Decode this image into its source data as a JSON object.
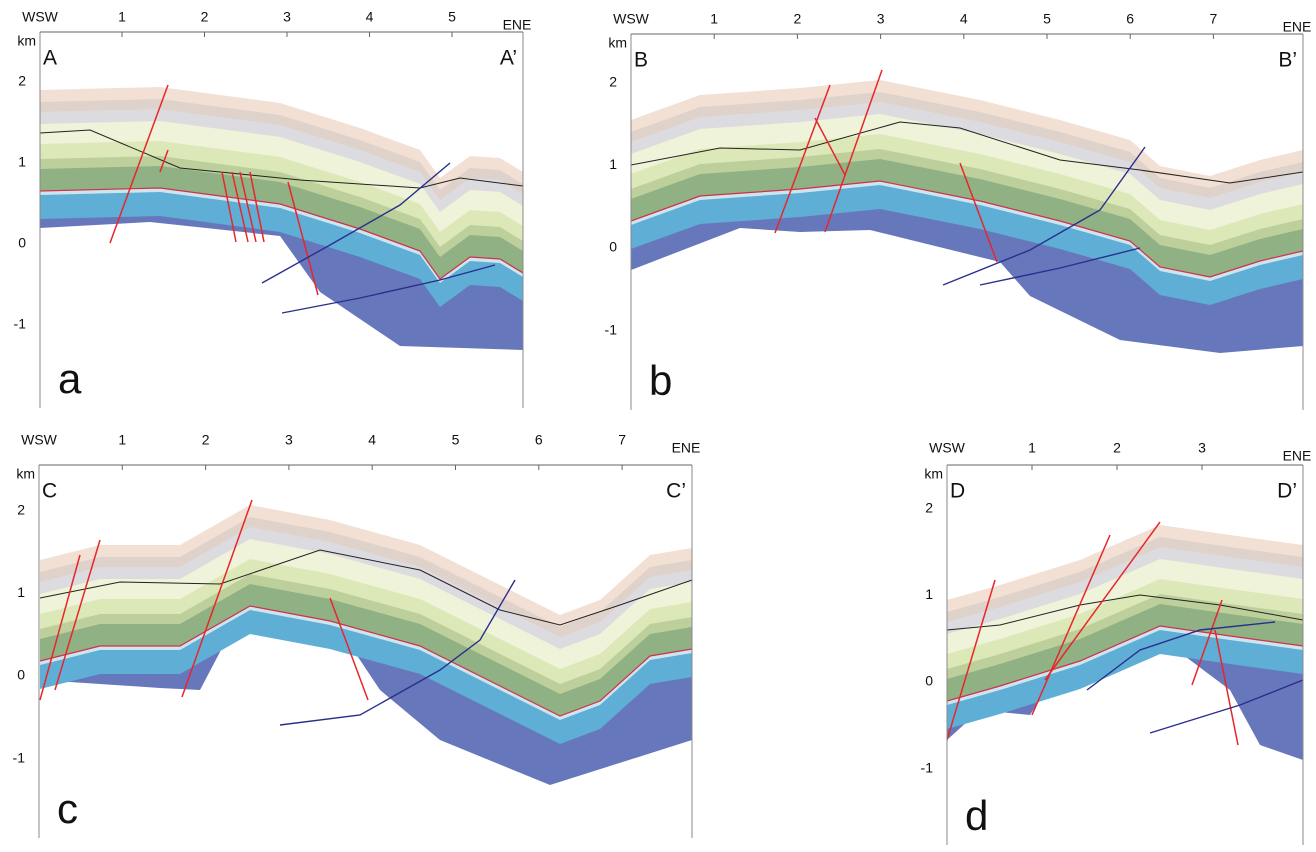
{
  "panels": [
    {
      "letter": "a",
      "start": "A",
      "end": "A’",
      "left": "WSW",
      "right": "ENE",
      "unit": "km",
      "xticks": [
        1,
        2,
        3,
        4,
        5
      ],
      "yticks": [
        2,
        1,
        0,
        -1
      ]
    },
    {
      "letter": "b",
      "start": "B",
      "end": "B’",
      "left": "WSW",
      "right": "ENE",
      "unit": "km",
      "xticks": [
        1,
        2,
        3,
        4,
        5,
        6,
        7
      ],
      "yticks": [
        2,
        1,
        0,
        -1
      ]
    },
    {
      "letter": "c",
      "start": "C",
      "end": "C’",
      "left": "WSW",
      "right": "ENE",
      "unit": "km",
      "xticks": [
        1,
        2,
        3,
        4,
        5,
        6,
        7
      ],
      "yticks": [
        2,
        1,
        0,
        -1
      ]
    },
    {
      "letter": "d",
      "start": "D",
      "end": "D’",
      "left": "WSW",
      "right": "ENE",
      "unit": "km",
      "xticks": [
        1,
        2,
        3
      ],
      "yticks": [
        2,
        1,
        0,
        -1
      ]
    }
  ]
}
